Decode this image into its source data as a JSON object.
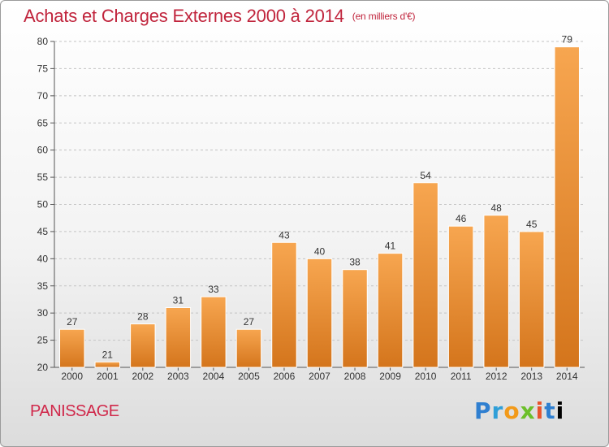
{
  "header": {
    "title": "Achats et Charges Externes 2000 à 2014",
    "unit": "(en milliers d'€)"
  },
  "footer": {
    "commune": "PANISSAGE",
    "logo_text": "Proxiti"
  },
  "colors": {
    "title": "#c0243c",
    "bar_light": "#f6a24a",
    "bar_dark": "#d97a1e",
    "grid": "#bfbfbf"
  },
  "chart_data": {
    "type": "bar",
    "categories": [
      "2000",
      "2001",
      "2002",
      "2003",
      "2004",
      "2005",
      "2006",
      "2007",
      "2008",
      "2009",
      "2010",
      "2011",
      "2012",
      "2013",
      "2014"
    ],
    "values": [
      27,
      21,
      28,
      31,
      33,
      27,
      43,
      40,
      38,
      41,
      54,
      46,
      48,
      45,
      79
    ],
    "title": "Achats et Charges Externes 2000 à 2014",
    "subtitle": "(en milliers d'€)",
    "xlabel": "",
    "ylabel": "",
    "ylim": [
      20,
      80
    ],
    "yticks": [
      20,
      25,
      30,
      35,
      40,
      45,
      50,
      55,
      60,
      65,
      70,
      75,
      80
    ],
    "grid": true,
    "legend": "none"
  }
}
